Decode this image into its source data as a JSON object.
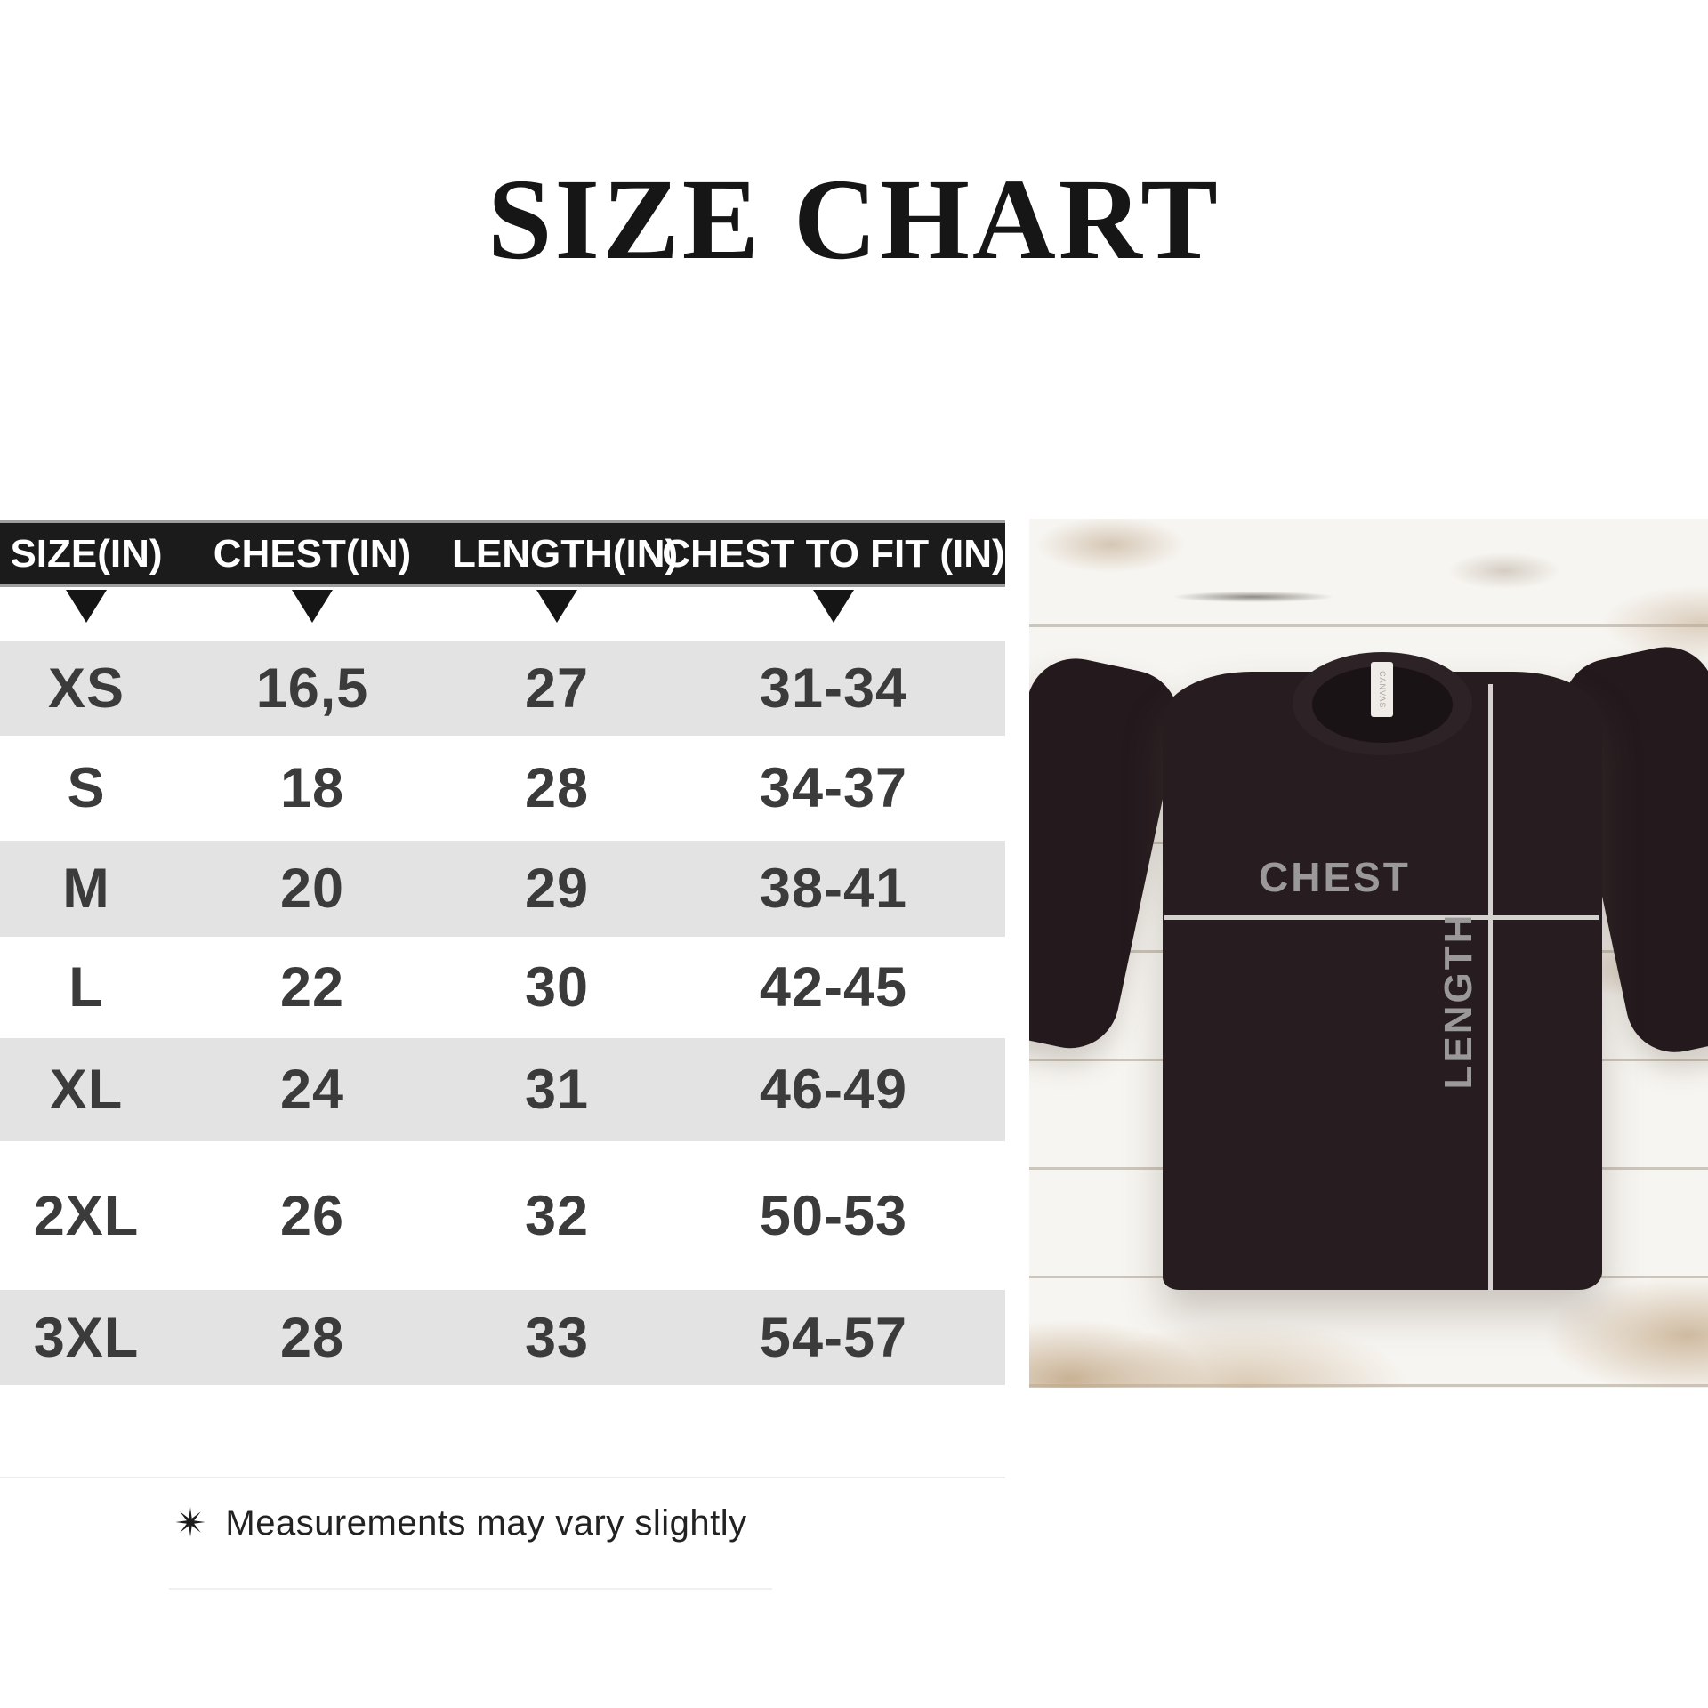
{
  "page": {
    "title": "SIZE CHART"
  },
  "table": {
    "columns": [
      {
        "label": "SIZE(IN)"
      },
      {
        "label": "CHEST(IN)"
      },
      {
        "label": "LENGTH(IN)"
      },
      {
        "label": "CHEST TO FIT (IN)"
      }
    ],
    "rows": [
      {
        "size": "XS",
        "chest": "16,5",
        "length": "27",
        "fit": "31-34"
      },
      {
        "size": "S",
        "chest": "18",
        "length": "28",
        "fit": "34-37"
      },
      {
        "size": "M",
        "chest": "20",
        "length": "29",
        "fit": "38-41"
      },
      {
        "size": "L",
        "chest": "22",
        "length": "30",
        "fit": "42-45"
      },
      {
        "size": "XL",
        "chest": "24",
        "length": "31",
        "fit": "46-49"
      },
      {
        "size": "2XL",
        "chest": "26",
        "length": "32",
        "fit": "50-53"
      },
      {
        "size": "3XL",
        "chest": "28",
        "length": "33",
        "fit": "54-57"
      }
    ]
  },
  "footnote": {
    "icon": "✴",
    "text": "Measurements may vary slightly"
  },
  "photo": {
    "chest_label": "CHEST",
    "length_label": "LENGTH",
    "tag_text": "CANVAS"
  },
  "colors": {
    "header_bg": "#1b1b1b",
    "row_alt_bg": "#e4e3e3",
    "shirt": "#271d21",
    "measure_line": "#d4d2cf",
    "label_gray": "#9b989a"
  },
  "chart_data": {
    "type": "table",
    "title": "SIZE CHART",
    "columns": [
      "SIZE(IN)",
      "CHEST(IN)",
      "LENGTH(IN)",
      "CHEST TO FIT (IN)"
    ],
    "rows": [
      [
        "XS",
        "16,5",
        "27",
        "31-34"
      ],
      [
        "S",
        "18",
        "28",
        "34-37"
      ],
      [
        "M",
        "20",
        "29",
        "38-41"
      ],
      [
        "L",
        "22",
        "30",
        "42-45"
      ],
      [
        "XL",
        "24",
        "31",
        "46-49"
      ],
      [
        "2XL",
        "26",
        "32",
        "50-53"
      ],
      [
        "3XL",
        "28",
        "33",
        "54-57"
      ]
    ],
    "footnote": "Measurements may vary slightly"
  }
}
